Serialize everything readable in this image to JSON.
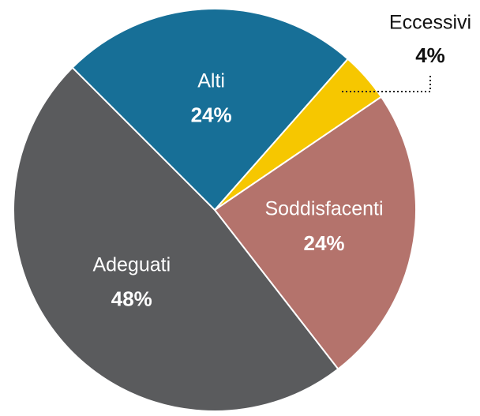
{
  "chart_data": {
    "type": "pie",
    "categories": [
      "Alti",
      "Eccessivi",
      "Soddisfacenti",
      "Adeguati"
    ],
    "values": [
      24,
      4,
      24,
      48
    ],
    "value_labels": [
      "24%",
      "4%",
      "24%",
      "48%"
    ],
    "colors": [
      "#176f97",
      "#f6c700",
      "#b4736c",
      "#5a5b5d"
    ]
  }
}
